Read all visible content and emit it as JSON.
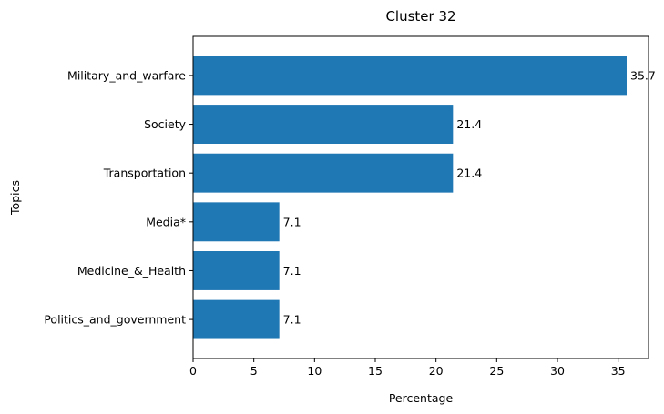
{
  "chart_data": {
    "type": "bar",
    "orientation": "horizontal",
    "title": "Cluster 32",
    "xlabel": "Percentage",
    "ylabel": "Topics",
    "categories": [
      "Military_and_warfare",
      "Society",
      "Transportation",
      "Media*",
      "Medicine_&_Health",
      "Politics_and_government"
    ],
    "values": [
      35.7,
      21.4,
      21.4,
      7.1,
      7.1,
      7.1
    ],
    "data_labels": [
      "35.7",
      "21.4",
      "21.4",
      "7.1",
      "7.1",
      "7.1"
    ],
    "xticks": [
      0,
      5,
      10,
      15,
      20,
      25,
      30,
      35
    ],
    "xlim": [
      0,
      37.5
    ],
    "grid": false,
    "bar_color": "#1f77b4"
  }
}
